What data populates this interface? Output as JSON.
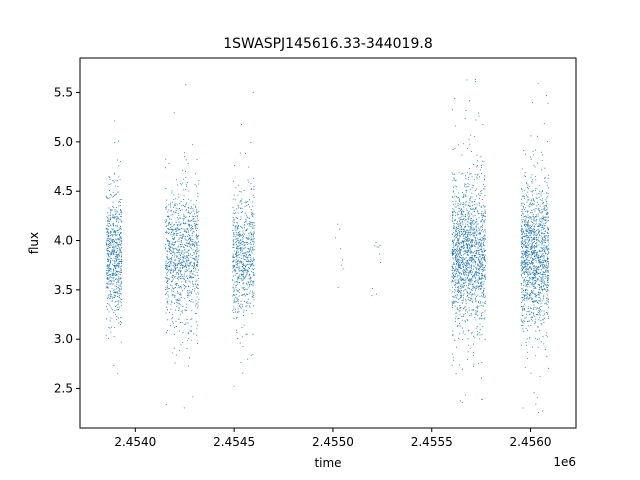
{
  "chart_data": {
    "type": "scatter",
    "title": "1SWASPJ145616.33-344019.8",
    "xlabel": "time",
    "ylabel": "flux",
    "x_offset_label": "1e6",
    "xlim": [
      2.45372,
      2.45623
    ],
    "ylim": [
      2.1,
      5.85
    ],
    "x_ticks": [
      2.454,
      2.4545,
      2.455,
      2.4555,
      2.456
    ],
    "x_tick_labels": [
      "2.4540",
      "2.4545",
      "2.4550",
      "2.4555",
      "2.4560"
    ],
    "y_ticks": [
      2.5,
      3.0,
      3.5,
      4.0,
      4.5,
      5.0,
      5.5
    ],
    "y_tick_labels": [
      "2.5",
      "3.0",
      "3.5",
      "4.0",
      "4.5",
      "5.0",
      "5.5"
    ],
    "grid": false,
    "point_color": "#1f77b4",
    "clusters": [
      {
        "x_range": [
          2.45385,
          2.45393
        ],
        "center": 3.85,
        "spread": 0.3,
        "count": 650,
        "min": 2.3,
        "max": 5.4
      },
      {
        "x_range": [
          2.45415,
          2.45432
        ],
        "center": 3.85,
        "spread": 0.32,
        "count": 950,
        "min": 2.25,
        "max": 5.65
      },
      {
        "x_range": [
          2.45449,
          2.4546
        ],
        "center": 3.85,
        "spread": 0.3,
        "count": 650,
        "min": 2.4,
        "max": 5.65
      },
      {
        "x_range": [
          2.45501,
          2.45505
        ],
        "center": 3.95,
        "spread": 0.3,
        "count": 8,
        "min": 3.45,
        "max": 4.4
      },
      {
        "x_range": [
          2.45519,
          2.45524
        ],
        "center": 3.7,
        "spread": 0.35,
        "count": 10,
        "min": 3.05,
        "max": 4.15
      },
      {
        "x_range": [
          2.4556,
          2.45577
        ],
        "center": 3.85,
        "spread": 0.35,
        "count": 1500,
        "min": 2.3,
        "max": 5.7
      },
      {
        "x_range": [
          2.45595,
          2.45609
        ],
        "center": 3.85,
        "spread": 0.35,
        "count": 1300,
        "min": 2.25,
        "max": 5.6
      }
    ]
  }
}
